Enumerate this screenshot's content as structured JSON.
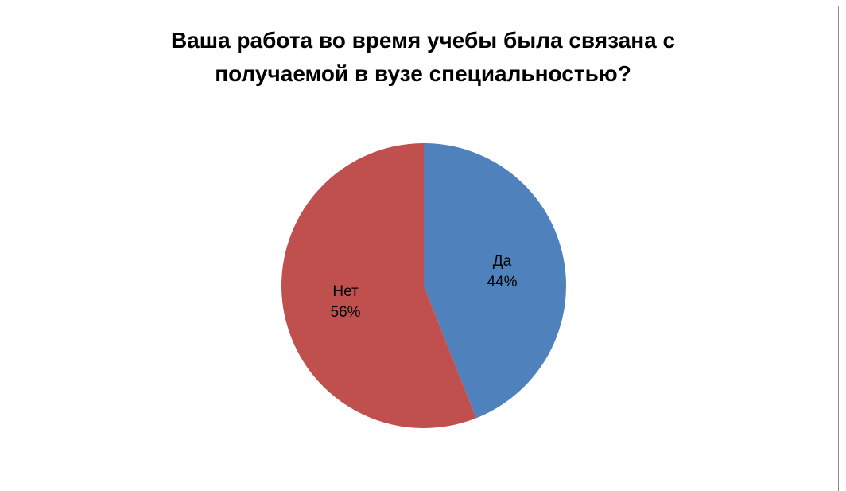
{
  "chart_data": {
    "type": "pie",
    "title_lines": [
      "Ваша работа во время учебы была связана с",
      "получаемой в вузе специальностью?"
    ],
    "slices": [
      {
        "label": "Да",
        "value": 44,
        "value_label": "44%",
        "color": "#4F81BD"
      },
      {
        "label": "Нет",
        "value": 56,
        "value_label": "56%",
        "color": "#C0504D"
      }
    ],
    "start_angle_deg": 0,
    "direction": "clockwise",
    "legend": "none"
  }
}
